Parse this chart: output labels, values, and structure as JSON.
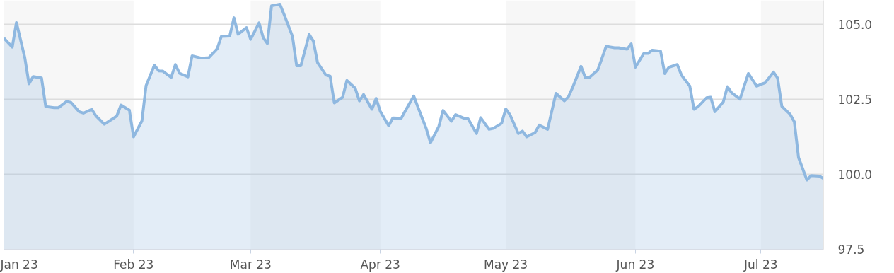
{
  "chart_data": {
    "type": "area",
    "x": [
      "2023-01-01",
      "2023-01-03",
      "2023-01-04",
      "2023-01-06",
      "2023-01-07",
      "2023-01-08",
      "2023-01-10",
      "2023-01-11",
      "2023-01-13",
      "2023-01-14",
      "2023-01-16",
      "2023-01-17",
      "2023-01-19",
      "2023-01-20",
      "2023-01-22",
      "2023-01-23",
      "2023-01-25",
      "2023-01-27",
      "2023-01-28",
      "2023-01-29",
      "2023-01-31",
      "2023-02-01",
      "2023-02-03",
      "2023-02-04",
      "2023-02-06",
      "2023-02-07",
      "2023-02-08",
      "2023-02-10",
      "2023-02-11",
      "2023-02-12",
      "2023-02-14",
      "2023-02-15",
      "2023-02-17",
      "2023-02-18",
      "2023-02-19",
      "2023-02-21",
      "2023-02-22",
      "2023-02-24",
      "2023-02-25",
      "2023-02-26",
      "2023-02-28",
      "2023-03-01",
      "2023-03-03",
      "2023-03-04",
      "2023-03-05",
      "2023-03-06",
      "2023-03-08",
      "2023-03-09",
      "2023-03-11",
      "2023-03-12",
      "2023-03-13",
      "2023-03-15",
      "2023-03-16",
      "2023-03-17",
      "2023-03-19",
      "2023-03-20",
      "2023-03-21",
      "2023-03-23",
      "2023-03-24",
      "2023-03-26",
      "2023-03-27",
      "2023-03-28",
      "2023-03-30",
      "2023-03-31",
      "2023-04-01",
      "2023-04-03",
      "2023-04-04",
      "2023-04-06",
      "2023-04-07",
      "2023-04-09",
      "2023-04-10",
      "2023-04-12",
      "2023-04-13",
      "2023-04-15",
      "2023-04-16",
      "2023-04-18",
      "2023-04-19",
      "2023-04-21",
      "2023-04-22",
      "2023-04-24",
      "2023-04-25",
      "2023-04-27",
      "2023-04-28",
      "2023-04-30",
      "2023-05-01",
      "2023-05-02",
      "2023-05-04",
      "2023-05-05",
      "2023-05-06",
      "2023-05-08",
      "2023-05-09",
      "2023-05-11",
      "2023-05-12",
      "2023-05-13",
      "2023-05-15",
      "2023-05-16",
      "2023-05-17",
      "2023-05-19",
      "2023-05-20",
      "2023-05-21",
      "2023-05-23",
      "2023-05-24",
      "2023-05-25",
      "2023-05-27",
      "2023-05-28",
      "2023-05-30",
      "2023-05-31",
      "2023-06-01",
      "2023-06-03",
      "2023-06-04",
      "2023-06-05",
      "2023-06-07",
      "2023-06-08",
      "2023-06-09",
      "2023-06-11",
      "2023-06-12",
      "2023-06-14",
      "2023-06-15",
      "2023-06-16",
      "2023-06-18",
      "2023-06-19",
      "2023-06-20",
      "2023-06-22",
      "2023-06-23",
      "2023-06-24",
      "2023-06-26",
      "2023-06-27",
      "2023-06-28",
      "2023-06-30",
      "2023-07-01",
      "2023-07-02",
      "2023-07-04",
      "2023-07-05",
      "2023-07-06",
      "2023-07-08",
      "2023-07-09",
      "2023-07-10",
      "2023-07-12",
      "2023-07-13",
      "2023-07-15",
      "2023-07-16"
    ],
    "series": [
      {
        "color": "#8fb8e0",
        "values": [
          104.54,
          104.24,
          105.06,
          103.89,
          103.02,
          103.26,
          103.21,
          102.26,
          102.22,
          102.22,
          102.43,
          102.4,
          102.09,
          102.04,
          102.17,
          101.95,
          101.67,
          101.85,
          101.95,
          102.31,
          102.14,
          101.25,
          101.78,
          102.96,
          103.64,
          103.45,
          103.44,
          103.23,
          103.66,
          103.37,
          103.25,
          103.95,
          103.88,
          103.88,
          103.89,
          104.19,
          104.6,
          104.61,
          105.22,
          104.67,
          104.89,
          104.5,
          105.05,
          104.56,
          104.36,
          105.62,
          105.67,
          105.33,
          104.6,
          103.62,
          103.62,
          104.66,
          104.44,
          103.72,
          103.31,
          103.27,
          102.38,
          102.57,
          103.13,
          102.87,
          102.45,
          102.66,
          102.17,
          102.53,
          102.1,
          101.62,
          101.88,
          101.87,
          102.12,
          102.61,
          102.24,
          101.52,
          101.05,
          101.6,
          102.13,
          101.77,
          101.99,
          101.87,
          101.85,
          101.36,
          101.89,
          101.5,
          101.53,
          101.7,
          102.18,
          101.99,
          101.36,
          101.44,
          101.25,
          101.39,
          101.64,
          101.5,
          102.1,
          102.7,
          102.45,
          102.59,
          102.9,
          103.6,
          103.23,
          103.23,
          103.48,
          103.87,
          104.27,
          104.22,
          104.22,
          104.17,
          104.35,
          103.57,
          104.03,
          104.03,
          104.14,
          104.11,
          103.36,
          103.57,
          103.66,
          103.31,
          102.94,
          102.17,
          102.26,
          102.55,
          102.57,
          102.09,
          102.41,
          102.92,
          102.72,
          102.51,
          102.94,
          103.36,
          102.94,
          103.0,
          103.05,
          103.41,
          103.21,
          102.27,
          102.0,
          101.75,
          100.56,
          99.81,
          99.96,
          99.94,
          99.86
        ]
      }
    ],
    "xlim": [
      "2023-01-01",
      "2023-07-16"
    ],
    "xticks": [
      {
        "value": "2023-01-01",
        "label": "Jan 23"
      },
      {
        "value": "2023-02-01",
        "label": "Feb 23"
      },
      {
        "value": "2023-03-01",
        "label": "Mar 23"
      },
      {
        "value": "2023-04-01",
        "label": "Apr 23"
      },
      {
        "value": "2023-05-01",
        "label": "May 23"
      },
      {
        "value": "2023-06-01",
        "label": "Jun 23"
      },
      {
        "value": "2023-07-01",
        "label": "Jul 23"
      }
    ],
    "ylim": [
      97.5,
      105.8
    ],
    "yticks": [
      97.5,
      {
        "value": 100,
        "label": "100.0"
      },
      102.5,
      {
        "value": 105,
        "label": "105.0"
      }
    ],
    "bands": [
      {
        "axis": "x",
        "from": "2023-01-01",
        "to": "2023-02-01",
        "color": "#f7f7f7"
      },
      {
        "axis": "x",
        "from": "2023-03-01",
        "to": "2023-04-01",
        "color": "#f7f7f7"
      },
      {
        "axis": "x",
        "from": "2023-05-01",
        "to": "2023-06-01",
        "color": "#f7f7f7"
      },
      {
        "axis": "x",
        "from": "2023-07-01",
        "to": "2023-07-16",
        "color": "#f7f7f7"
      }
    ],
    "grid": "y"
  }
}
